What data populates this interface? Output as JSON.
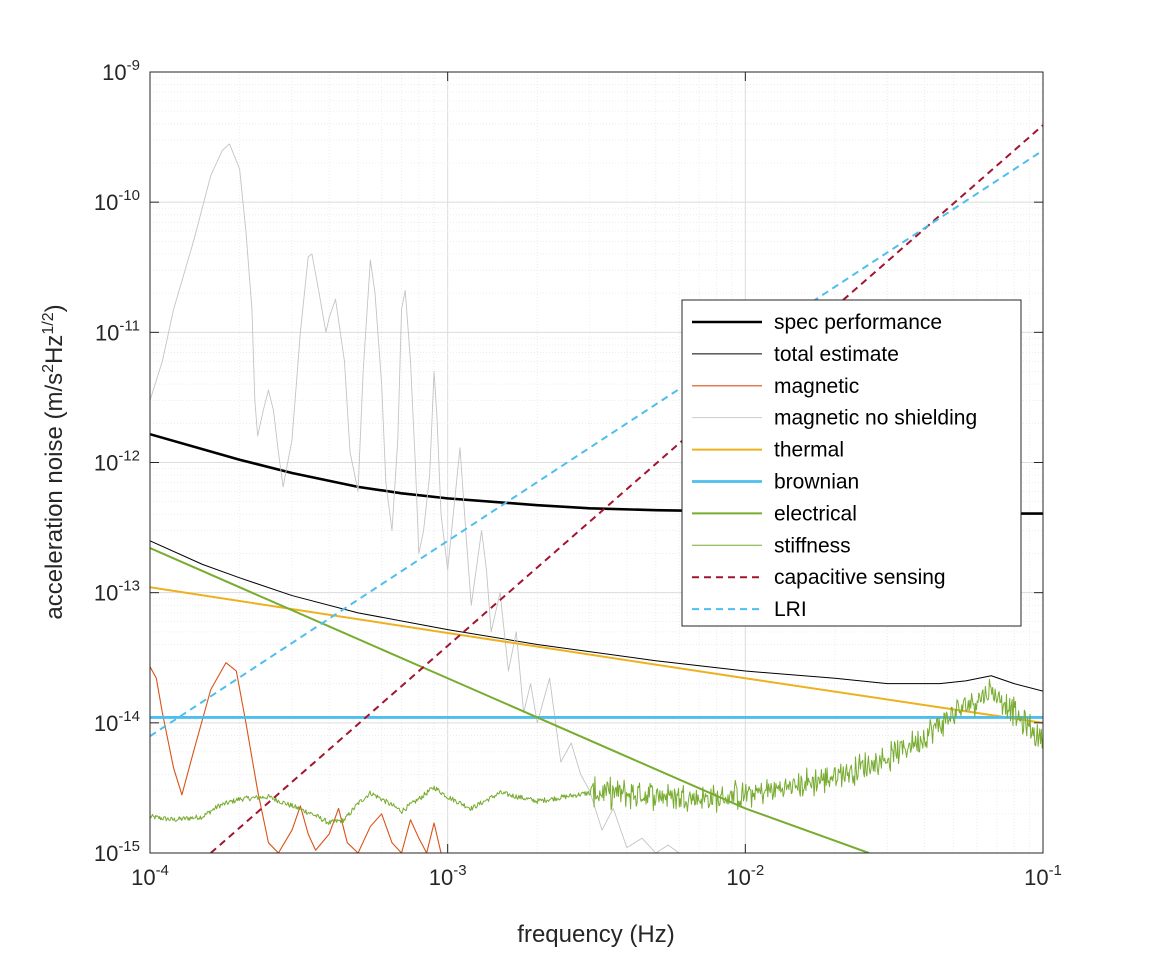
{
  "chart_data": {
    "type": "line",
    "xscale": "log",
    "yscale": "log",
    "xlim": [
      0.0001,
      0.1
    ],
    "ylim": [
      1e-15,
      1e-09
    ],
    "xlabel": "frequency (Hz)",
    "ylabel": {
      "prefix": "acceleration noise (m/s",
      "sup1": "2",
      "mid": "Hz",
      "sup2": "1/2",
      "suffix": ")"
    },
    "grid": true,
    "minor_grid": true,
    "legend_position": "right",
    "x_ticks": [
      {
        "value": 0.0001,
        "base": "10",
        "exp": "-4"
      },
      {
        "value": 0.001,
        "base": "10",
        "exp": "-3"
      },
      {
        "value": 0.01,
        "base": "10",
        "exp": "-2"
      },
      {
        "value": 0.1,
        "base": "10",
        "exp": "-1"
      }
    ],
    "y_ticks": [
      {
        "value": 1e-15,
        "base": "10",
        "exp": "-15"
      },
      {
        "value": 1e-14,
        "base": "10",
        "exp": "-14"
      },
      {
        "value": 1e-13,
        "base": "10",
        "exp": "-13"
      },
      {
        "value": 1e-12,
        "base": "10",
        "exp": "-12"
      },
      {
        "value": 1e-11,
        "base": "10",
        "exp": "-11"
      },
      {
        "value": 1e-10,
        "base": "10",
        "exp": "-10"
      },
      {
        "value": 1e-09,
        "base": "10",
        "exp": "-9"
      }
    ],
    "series": [
      {
        "name": "spec performance",
        "color": "#000000",
        "width": 2.6,
        "dash": "",
        "style": "smooth",
        "points": [
          [
            0.0001,
            1.65e-12
          ],
          [
            0.0002,
            1.05e-12
          ],
          [
            0.0003,
            8.3e-13
          ],
          [
            0.0005,
            6.5e-13
          ],
          [
            0.0007,
            5.8e-13
          ],
          [
            0.001,
            5.3e-13
          ],
          [
            0.002,
            4.7e-13
          ],
          [
            0.003,
            4.45e-13
          ],
          [
            0.005,
            4.3e-13
          ],
          [
            0.01,
            4.2e-13
          ],
          [
            0.02,
            4.1e-13
          ],
          [
            0.05,
            4.05e-13
          ],
          [
            0.1,
            4.05e-13
          ]
        ]
      },
      {
        "name": "total estimate",
        "color": "#000000",
        "width": 1.0,
        "dash": "",
        "style": "smooth",
        "points": [
          [
            0.0001,
            2.5e-13
          ],
          [
            0.00015,
            1.65e-13
          ],
          [
            0.0002,
            1.3e-13
          ],
          [
            0.0003,
            9.5e-14
          ],
          [
            0.0005,
            7e-14
          ],
          [
            0.001,
            5.2e-14
          ],
          [
            0.002,
            4e-14
          ],
          [
            0.005,
            3e-14
          ],
          [
            0.01,
            2.5e-14
          ],
          [
            0.02,
            2.2e-14
          ],
          [
            0.03,
            2e-14
          ],
          [
            0.045,
            2e-14
          ],
          [
            0.055,
            2.1e-14
          ],
          [
            0.067,
            2.3e-14
          ],
          [
            0.08,
            2e-14
          ],
          [
            0.1,
            1.75e-14
          ]
        ]
      },
      {
        "name": "magnetic",
        "color": "#D95319",
        "width": 1.1,
        "dash": "",
        "style": "smooth",
        "points": [
          [
            0.0001,
            2.7e-14
          ],
          [
            0.000105,
            2.2e-14
          ],
          [
            0.00011,
            1.2e-14
          ],
          [
            0.00012,
            4.5e-15
          ],
          [
            0.000128,
            2.8e-15
          ],
          [
            0.00014,
            6e-15
          ],
          [
            0.00016,
            1.8e-14
          ],
          [
            0.00018,
            2.9e-14
          ],
          [
            0.000195,
            2.5e-14
          ],
          [
            0.00021,
            1e-14
          ],
          [
            0.00023,
            3e-15
          ],
          [
            0.00025,
            1.2e-15
          ],
          [
            0.00027,
            1e-15
          ],
          [
            0.0003,
            1.5e-15
          ],
          [
            0.00032,
            2.3e-15
          ],
          [
            0.00034,
            1.4e-15
          ],
          [
            0.00036,
            1.05e-15
          ],
          [
            0.0004,
            1.4e-15
          ],
          [
            0.00043,
            2.2e-15
          ],
          [
            0.00046,
            1.2e-15
          ],
          [
            0.0005,
            1e-15
          ],
          [
            0.00055,
            1.6e-15
          ],
          [
            0.0006,
            2e-15
          ],
          [
            0.00065,
            1.2e-15
          ],
          [
            0.0007,
            1e-15
          ],
          [
            0.00075,
            1.8e-15
          ],
          [
            0.0008,
            1.3e-15
          ],
          [
            0.00085,
            1e-15
          ],
          [
            0.0009,
            1.7e-15
          ],
          [
            0.00095,
            1e-15
          ]
        ]
      },
      {
        "name": "magnetic no shielding",
        "color": "#c4c4c4",
        "width": 0.9,
        "dash": "",
        "style": "smooth",
        "points": [
          [
            0.0001,
            3e-12
          ],
          [
            0.00011,
            6e-12
          ],
          [
            0.00012,
            1.5e-11
          ],
          [
            0.00014,
            5e-11
          ],
          [
            0.00016,
            1.6e-10
          ],
          [
            0.000175,
            2.5e-10
          ],
          [
            0.000185,
            2.8e-10
          ],
          [
            0.0002,
            1.8e-10
          ],
          [
            0.00021,
            6e-11
          ],
          [
            0.00022,
            1.5e-11
          ],
          [
            0.000225,
            3e-12
          ],
          [
            0.00023,
            1.6e-12
          ],
          [
            0.00024,
            2.5e-12
          ],
          [
            0.00025,
            3.6e-12
          ],
          [
            0.00026,
            2.5e-12
          ],
          [
            0.00027,
            1.2e-12
          ],
          [
            0.00028,
            6.5e-13
          ],
          [
            0.0003,
            1.5e-12
          ],
          [
            0.00032,
            1e-11
          ],
          [
            0.00034,
            3.8e-11
          ],
          [
            0.00035,
            4e-11
          ],
          [
            0.00037,
            2e-11
          ],
          [
            0.00039,
            1e-11
          ],
          [
            0.0004,
            1.3e-11
          ],
          [
            0.00042,
            1.8e-11
          ],
          [
            0.00045,
            6e-12
          ],
          [
            0.00047,
            1.2e-12
          ],
          [
            0.0005,
            6e-13
          ],
          [
            0.00052,
            5e-12
          ],
          [
            0.00055,
            3.6e-11
          ],
          [
            0.00057,
            2e-11
          ],
          [
            0.0006,
            4e-12
          ],
          [
            0.00062,
            7e-13
          ],
          [
            0.00065,
            3e-13
          ],
          [
            0.00068,
            1.5e-12
          ],
          [
            0.0007,
            1.5e-11
          ],
          [
            0.00072,
            2.1e-11
          ],
          [
            0.00075,
            6e-12
          ],
          [
            0.00078,
            9e-13
          ],
          [
            0.0008,
            2e-13
          ],
          [
            0.00083,
            3e-13
          ],
          [
            0.00087,
            8e-13
          ],
          [
            0.0009,
            5e-12
          ],
          [
            0.00092,
            2.3e-12
          ],
          [
            0.00095,
            4e-13
          ],
          [
            0.001,
            1.5e-13
          ],
          [
            0.0011,
            1.3e-12
          ],
          [
            0.00115,
            3e-13
          ],
          [
            0.0012,
            8e-14
          ],
          [
            0.0013,
            3e-13
          ],
          [
            0.00135,
            1.5e-13
          ],
          [
            0.0014,
            5e-14
          ],
          [
            0.0015,
            1e-13
          ],
          [
            0.0016,
            2.5e-14
          ],
          [
            0.0017,
            5e-14
          ],
          [
            0.0018,
            1.2e-14
          ],
          [
            0.0019,
            2e-14
          ],
          [
            0.002,
            1e-14
          ],
          [
            0.0022,
            2.2e-14
          ],
          [
            0.0024,
            5e-15
          ],
          [
            0.0026,
            7e-15
          ],
          [
            0.0028,
            4e-15
          ],
          [
            0.003,
            3e-15
          ],
          [
            0.0033,
            1.5e-15
          ],
          [
            0.0036,
            2.2e-15
          ],
          [
            0.004,
            1.1e-15
          ],
          [
            0.0045,
            1.3e-15
          ],
          [
            0.005,
            1e-15
          ],
          [
            0.0055,
            1.15e-15
          ],
          [
            0.006,
            1e-15
          ]
        ]
      },
      {
        "name": "thermal",
        "color": "#EDB120",
        "width": 2.0,
        "dash": "",
        "style": "smooth",
        "points": [
          [
            0.0001,
            1.1e-13
          ],
          [
            0.001,
            4.9e-14
          ],
          [
            0.01,
            2.2e-14
          ],
          [
            0.1,
            1e-14
          ]
        ]
      },
      {
        "name": "brownian",
        "color": "#4DBEEE",
        "width": 2.8,
        "dash": "",
        "style": "smooth",
        "points": [
          [
            0.0001,
            1.1e-14
          ],
          [
            0.1,
            1.1e-14
          ]
        ]
      },
      {
        "name": "electrical",
        "color": "#77AC30",
        "width": 2.0,
        "dash": "",
        "style": "smooth",
        "points": [
          [
            0.0001,
            2.2e-13
          ],
          [
            0.001,
            2.2e-14
          ],
          [
            0.01,
            2.2e-15
          ],
          [
            0.026,
            1e-15
          ]
        ]
      },
      {
        "name": "stiffness",
        "color": "#77AC30",
        "width": 1.0,
        "dash": "",
        "style": "noisy",
        "points": [
          [
            0.0001,
            1.9e-15
          ],
          [
            0.00012,
            1.8e-15
          ],
          [
            0.00015,
            1.9e-15
          ],
          [
            0.00017,
            2.3e-15
          ],
          [
            0.0002,
            2.6e-15
          ],
          [
            0.00025,
            2.7e-15
          ],
          [
            0.0003,
            2.3e-15
          ],
          [
            0.00035,
            2e-15
          ],
          [
            0.0004,
            1.7e-15
          ],
          [
            0.00045,
            1.8e-15
          ],
          [
            0.0005,
            2.4e-15
          ],
          [
            0.00055,
            2.9e-15
          ],
          [
            0.0006,
            2.6e-15
          ],
          [
            0.0007,
            2.1e-15
          ],
          [
            0.0008,
            2.6e-15
          ],
          [
            0.0009,
            3.2e-15
          ],
          [
            0.001,
            2.7e-15
          ],
          [
            0.0012,
            2.2e-15
          ],
          [
            0.0015,
            2.9e-15
          ],
          [
            0.002,
            2.5e-15
          ],
          [
            0.003,
            2.9e-15
          ],
          [
            0.005,
            2.8e-15
          ],
          [
            0.008,
            2.6e-15
          ],
          [
            0.01,
            2.8e-15
          ],
          [
            0.015,
            3.3e-15
          ],
          [
            0.02,
            3.9e-15
          ],
          [
            0.03,
            5.3e-15
          ],
          [
            0.04,
            8e-15
          ],
          [
            0.05,
            1.15e-14
          ],
          [
            0.06,
            1.55e-14
          ],
          [
            0.067,
            1.75e-14
          ],
          [
            0.075,
            1.45e-14
          ],
          [
            0.085,
            1e-14
          ],
          [
            0.1,
            7.5e-15
          ]
        ]
      },
      {
        "name": "capacitive sensing",
        "color": "#A2142F",
        "width": 2.0,
        "dash": "7,5",
        "style": "smooth",
        "points": [
          [
            0.00016,
            1e-15
          ],
          [
            0.1,
            3.9e-10
          ]
        ]
      },
      {
        "name": "LRI",
        "color": "#4DBEEE",
        "width": 2.0,
        "dash": "7,5",
        "style": "smooth",
        "points": [
          [
            0.0001,
            7.9e-15
          ],
          [
            0.1,
            2.5e-10
          ]
        ]
      }
    ]
  }
}
